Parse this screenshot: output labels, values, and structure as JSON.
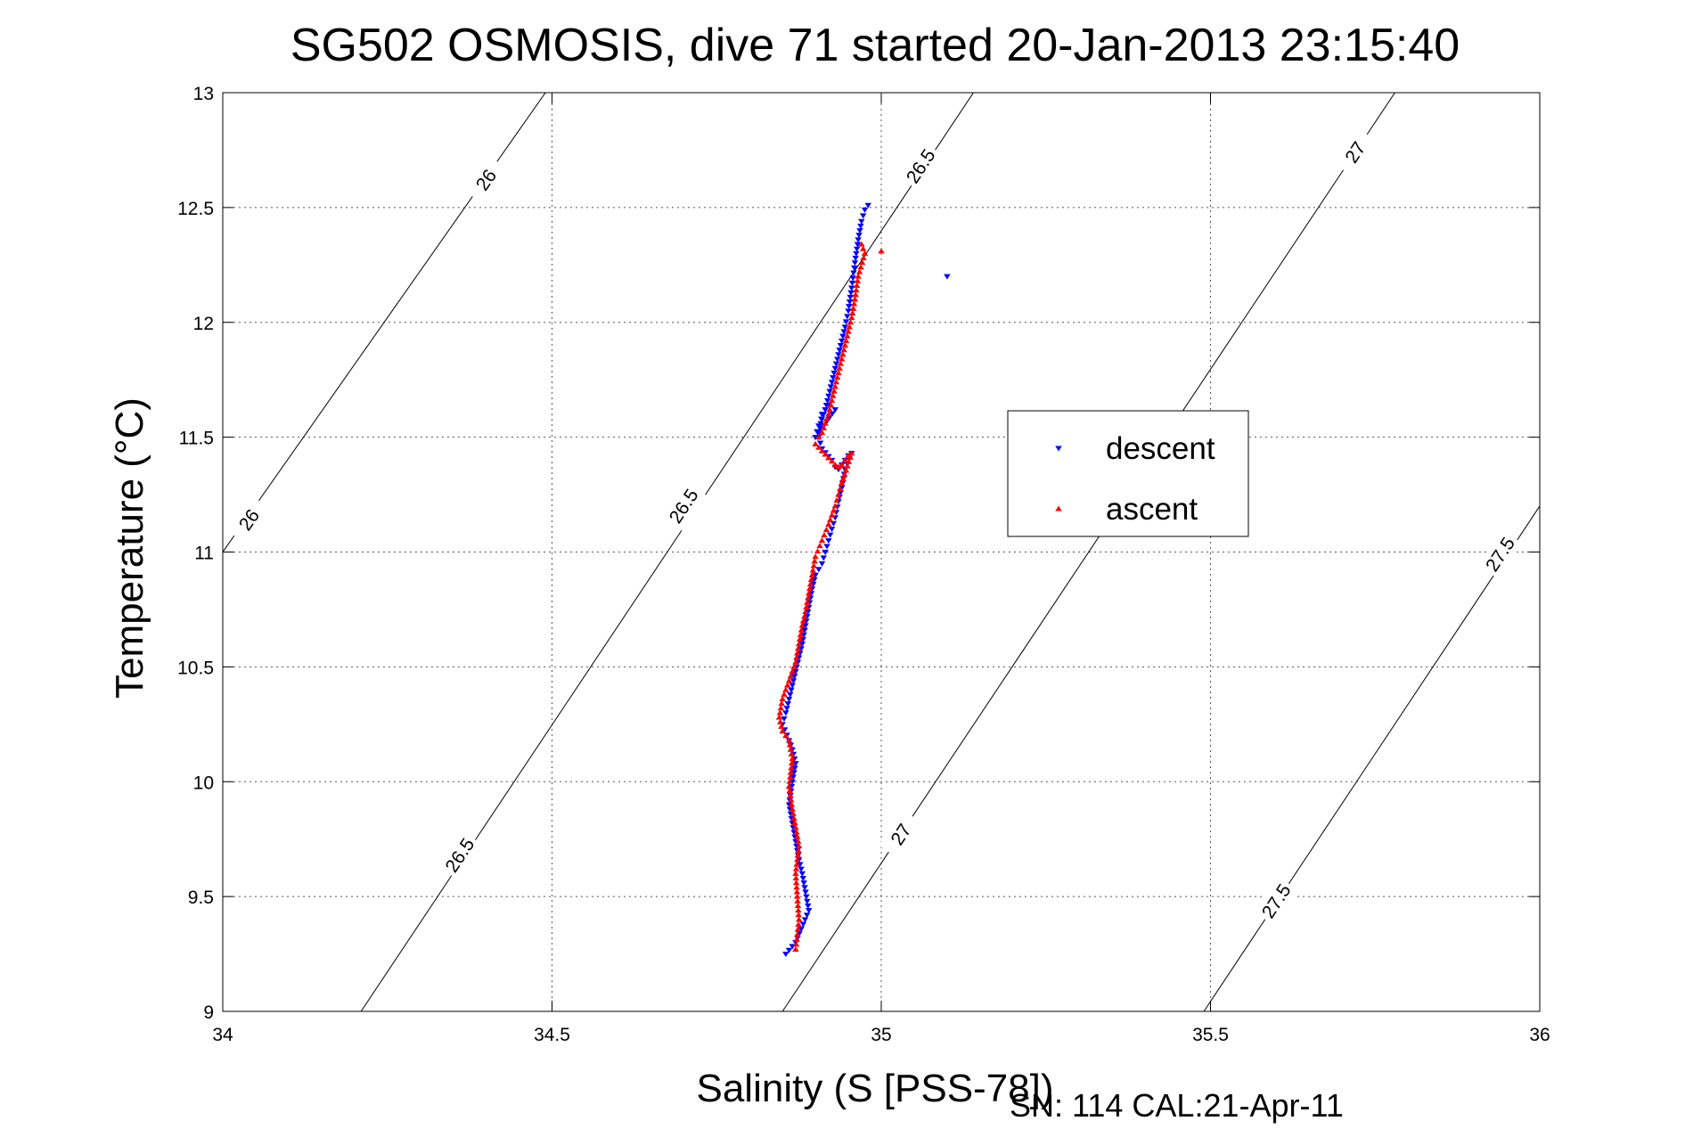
{
  "chart_data": {
    "type": "scatter",
    "title": "SG502 OSMOSIS, dive 71 started 20-Jan-2013 23:15:40",
    "xlabel": "Salinity (S [PSS-78])",
    "ylabel": "Temperature (°C)",
    "xlim": [
      34,
      36
    ],
    "ylim": [
      9,
      13
    ],
    "x_ticks": [
      34,
      34.5,
      35,
      35.5,
      36
    ],
    "y_ticks": [
      9,
      9.5,
      10,
      10.5,
      11,
      11.5,
      12,
      12.5,
      13
    ],
    "x_tick_labels": [
      "34",
      "34.5",
      "35",
      "35.5",
      "36"
    ],
    "y_tick_labels": [
      "9",
      "9.5",
      "10",
      "10.5",
      "11",
      "11.5",
      "12",
      "12.5",
      "13"
    ],
    "grid": true,
    "legend_position": "center-right",
    "footer": "SN: 114  CAL:21-Apr-11",
    "density_contours": [
      {
        "level": "26",
        "points": [
          [
            34,
            11.0
          ],
          [
            34.49,
            13.0
          ]
        ],
        "labels": [
          {
            "text": "26",
            "at": [
              34.04,
              11.14
            ]
          },
          {
            "text": "26",
            "at": [
              34.4,
              12.62
            ]
          }
        ]
      },
      {
        "level": "26.5",
        "points": [
          [
            34.21,
            9.0
          ],
          [
            35.14,
            13.0
          ]
        ],
        "labels": [
          {
            "text": "26.5",
            "at": [
              34.36,
              9.68
            ]
          },
          {
            "text": "26.5",
            "at": [
              34.7,
              11.2
            ]
          },
          {
            "text": "26.5",
            "at": [
              35.06,
              12.68
            ]
          }
        ]
      },
      {
        "level": "27",
        "points": [
          [
            34.85,
            9.0
          ],
          [
            35.78,
            13.0
          ]
        ],
        "labels": [
          {
            "text": "27",
            "at": [
              35.03,
              9.77
            ]
          },
          {
            "text": "27",
            "at": [
              35.72,
              12.74
            ]
          }
        ]
      },
      {
        "level": "27.5",
        "points": [
          [
            35.49,
            9.0
          ],
          [
            36.0,
            11.2
          ]
        ],
        "labels": [
          {
            "text": "27.5",
            "at": [
              35.6,
              9.48
            ]
          },
          {
            "text": "27.5",
            "at": [
              35.94,
              10.99
            ]
          }
        ]
      }
    ],
    "series": [
      {
        "name": "descent",
        "color": "#0000ff",
        "marker": "triangle-down",
        "x": [
          34.98,
          34.975,
          34.97,
          34.965,
          34.96,
          34.955,
          34.95,
          34.945,
          34.94,
          34.935,
          34.93,
          34.925,
          34.92,
          34.915,
          34.91,
          34.905,
          34.9,
          34.93,
          34.92,
          34.91,
          34.905,
          34.91,
          34.925,
          34.93,
          34.935,
          34.94,
          34.945,
          34.95,
          34.955,
          34.945,
          34.94,
          34.935,
          34.93,
          34.925,
          34.92,
          34.915,
          34.91,
          34.9,
          34.895,
          34.89,
          34.885,
          34.88,
          34.875,
          34.87,
          34.865,
          34.86,
          34.855,
          34.85,
          34.86,
          34.865,
          34.87,
          34.865,
          34.86,
          34.865,
          34.87,
          34.875,
          34.88,
          34.885,
          34.89,
          34.87,
          34.855,
          35.1
        ],
        "y": [
          12.51,
          12.49,
          12.44,
          12.36,
          12.26,
          12.15,
          12.05,
          11.98,
          11.92,
          11.86,
          11.8,
          11.74,
          11.68,
          11.62,
          11.58,
          11.55,
          11.5,
          11.62,
          11.64,
          11.6,
          11.5,
          11.45,
          11.4,
          11.37,
          11.36,
          11.38,
          11.4,
          11.42,
          11.43,
          11.36,
          11.28,
          11.22,
          11.15,
          11.1,
          11.05,
          11.0,
          10.95,
          10.9,
          10.84,
          10.76,
          10.68,
          10.6,
          10.54,
          10.48,
          10.42,
          10.36,
          10.3,
          10.25,
          10.18,
          10.14,
          10.08,
          10.0,
          9.9,
          9.82,
          9.74,
          9.66,
          9.6,
          9.52,
          9.44,
          9.3,
          9.25,
          12.2
        ]
      },
      {
        "name": "ascent",
        "color": "#ff0000",
        "marker": "triangle-up",
        "x": [
          34.97,
          34.975,
          34.965,
          34.96,
          34.955,
          34.95,
          34.945,
          34.94,
          34.935,
          34.93,
          34.925,
          34.92,
          34.915,
          34.91,
          34.905,
          34.9,
          34.93,
          34.935,
          34.94,
          34.945,
          34.95,
          34.955,
          34.94,
          34.935,
          34.93,
          34.92,
          34.91,
          34.9,
          34.895,
          34.89,
          34.885,
          34.88,
          34.875,
          34.87,
          34.86,
          34.85,
          34.845,
          34.85,
          34.855,
          34.86,
          34.865,
          34.86,
          34.865,
          34.87,
          34.875,
          34.87,
          34.875,
          34.87,
          35.0
        ],
        "y": [
          12.34,
          12.3,
          12.2,
          12.1,
          12.02,
          11.96,
          11.9,
          11.84,
          11.78,
          11.72,
          11.66,
          11.6,
          11.56,
          11.52,
          11.5,
          11.47,
          11.38,
          11.37,
          11.38,
          11.4,
          11.42,
          11.43,
          11.3,
          11.25,
          11.2,
          11.12,
          11.05,
          10.98,
          10.9,
          10.82,
          10.74,
          10.68,
          10.6,
          10.52,
          10.44,
          10.36,
          10.28,
          10.22,
          10.2,
          10.18,
          10.1,
          9.98,
          9.88,
          9.8,
          9.72,
          9.6,
          9.4,
          9.27,
          12.31
        ]
      }
    ]
  }
}
